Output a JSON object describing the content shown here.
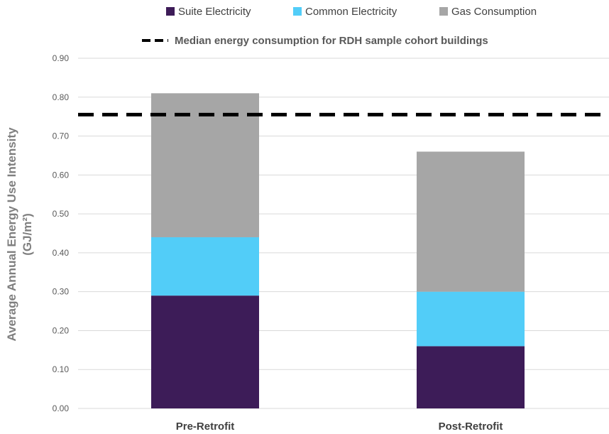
{
  "chart_data": {
    "type": "bar",
    "stacked": true,
    "categories": [
      "Pre-Retrofit",
      "Post-Retrofit"
    ],
    "series": [
      {
        "name": "Suite Electricity",
        "color": "#3d1c58",
        "values": [
          0.29,
          0.16
        ]
      },
      {
        "name": "Common Electricity",
        "color": "#52cdf8",
        "values": [
          0.15,
          0.14
        ]
      },
      {
        "name": "Gas Consumption",
        "color": "#a6a6a6",
        "values": [
          0.37,
          0.36
        ]
      }
    ],
    "reference_line": {
      "name": "Median energy consumption for RDH sample cohort buildings",
      "value": 0.755,
      "color": "#000000",
      "style": "dashed"
    },
    "ylabel_line1": "Average Annual Energy Use Intensity",
    "ylabel_line2": "(GJ/m²)",
    "ylim": [
      0,
      0.9
    ],
    "yticks": [
      "0.00",
      "0.10",
      "0.20",
      "0.30",
      "0.40",
      "0.50",
      "0.60",
      "0.70",
      "0.80",
      "0.90"
    ],
    "grid": true,
    "legend": "top"
  }
}
